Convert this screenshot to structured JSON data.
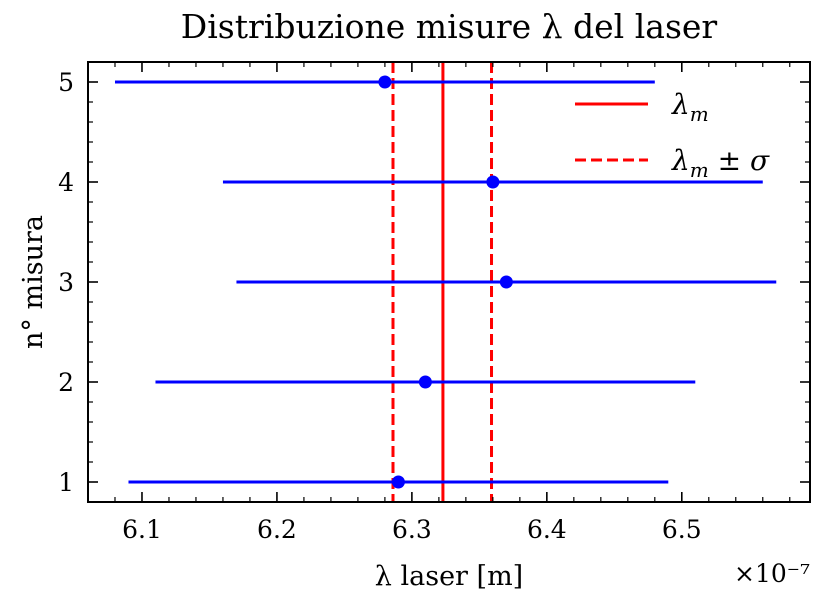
{
  "chart_data": {
    "type": "scatter",
    "title": "Distribuzione misure λ del laser",
    "xlabel": "λ laser [m]",
    "ylabel": "n° misura",
    "x_offset_label": "×10⁻⁷",
    "x_scale_exponent": -7,
    "xlim": [
      6.06,
      6.595
    ],
    "ylim": [
      0.8,
      5.2
    ],
    "xticks": [
      6.1,
      6.2,
      6.3,
      6.4,
      6.5
    ],
    "xtick_labels": [
      "6.1",
      "6.2",
      "6.3",
      "6.4",
      "6.5"
    ],
    "yticks": [
      1,
      2,
      3,
      4,
      5
    ],
    "ytick_labels": [
      "1",
      "2",
      "3",
      "4",
      "5"
    ],
    "grid": false,
    "legend_position": "top-right",
    "series": [
      {
        "name": "",
        "color": "#0000ff",
        "points": [
          {
            "x": 6.29,
            "y": 1,
            "xerr": 0.2
          },
          {
            "x": 6.31,
            "y": 2,
            "xerr": 0.2
          },
          {
            "x": 6.37,
            "y": 3,
            "xerr": 0.2
          },
          {
            "x": 6.36,
            "y": 4,
            "xerr": 0.2
          },
          {
            "x": 6.28,
            "y": 5,
            "xerr": 0.2
          }
        ]
      }
    ],
    "reference_lines": [
      {
        "name": "λm",
        "x": 6.323,
        "style": "solid",
        "color": "#ff0000"
      },
      {
        "name": "λm ± σ",
        "x": 6.286,
        "style": "dashed",
        "color": "#ff0000"
      },
      {
        "name": "",
        "x": 6.359,
        "style": "dashed",
        "color": "#ff0000"
      }
    ],
    "legend": [
      {
        "label": "λm",
        "base": "λ",
        "sub": "m",
        "suffix": "",
        "style": "solid",
        "color": "#ff0000"
      },
      {
        "label": "λm ± σ",
        "base": "λ",
        "sub": "m",
        "suffix": " ± σ",
        "style": "dashed",
        "color": "#ff0000"
      }
    ]
  }
}
